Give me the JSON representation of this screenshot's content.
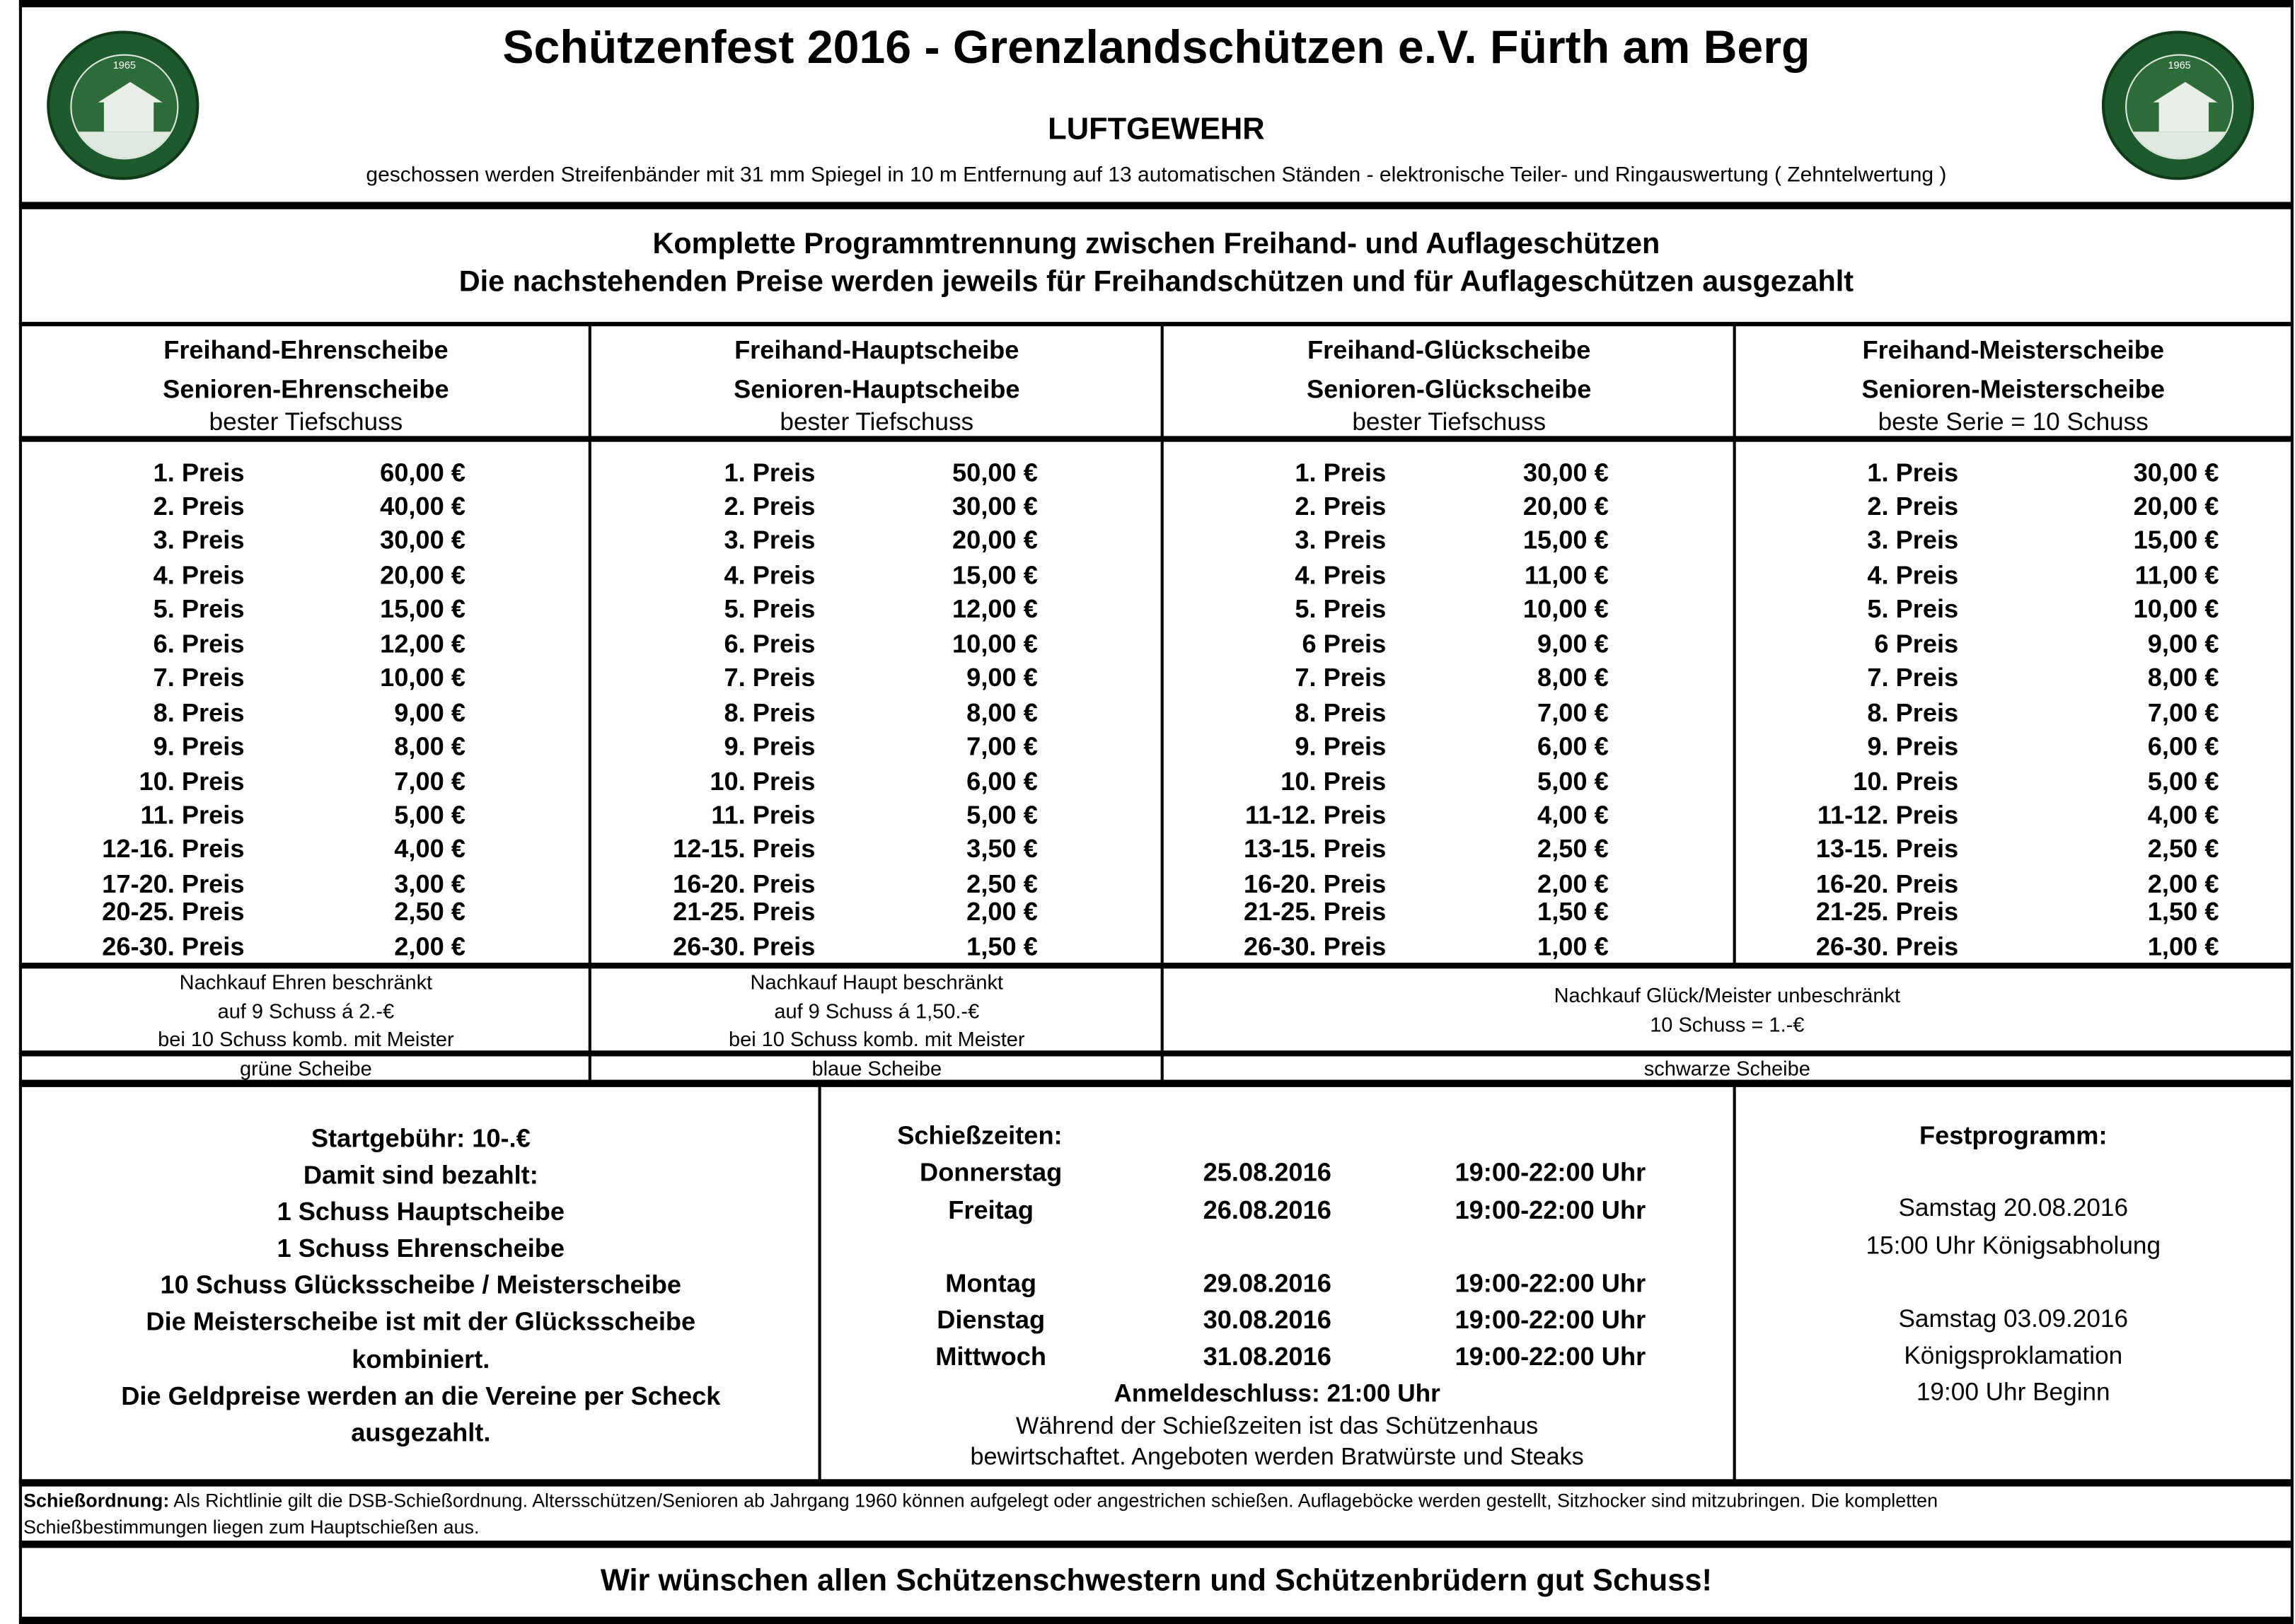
{
  "header": {
    "title": "Schützenfest 2016 - Grenzlandschützen e.V. Fürth am Berg",
    "subtitle": "LUFTGEWEHR",
    "description": "geschossen werden Streifenbänder mit 31 mm Spiegel in 10 m Entfernung auf 13 automatischen Ständen  - elektronische Teiler- und Ringauswertung ( Zehntelwertung )",
    "logo_text": "GRENZLANDSCHÜTZEN 1965 FÜRTH AM BERG",
    "logo_color": "#1f5a2c"
  },
  "notice": {
    "line1": "Komplette Programmtrennung zwischen Freihand- und Auflageschützen",
    "line2": "Die nachstehenden Preise werden jeweils für Freihandschützen und für Auflageschützen ausgezahlt"
  },
  "columns": [
    {
      "title1": "Freihand-Ehrenscheibe",
      "title2": "Senioren-Ehrenscheibe",
      "title3": "bester Tiefschuss",
      "prizes": [
        {
          "place": "1. Preis",
          "amount": "60,00 €"
        },
        {
          "place": "2. Preis",
          "amount": "40,00 €"
        },
        {
          "place": "3. Preis",
          "amount": "30,00 €"
        },
        {
          "place": "4. Preis",
          "amount": "20,00 €"
        },
        {
          "place": "5. Preis",
          "amount": "15,00 €"
        },
        {
          "place": "6. Preis",
          "amount": "12,00 €"
        },
        {
          "place": "7. Preis",
          "amount": "10,00 €"
        },
        {
          "place": "8. Preis",
          "amount": "9,00 €"
        },
        {
          "place": "9. Preis",
          "amount": "8,00 €"
        },
        {
          "place": "10. Preis",
          "amount": "7,00 €"
        },
        {
          "place": "11. Preis",
          "amount": "5,00 €"
        },
        {
          "place": "12-16. Preis",
          "amount": "4,00 €"
        },
        {
          "place": "17-20. Preis",
          "amount": "3,00 €"
        },
        {
          "place": "20-25. Preis",
          "amount": "2,50 €"
        },
        {
          "place": "26-30. Preis",
          "amount": "2,00 €"
        }
      ],
      "nachkauf": [
        "Nachkauf Ehren beschränkt",
        "auf 9 Schuss á 2.-€",
        "bei 10 Schuss komb. mit Meister"
      ],
      "scheibe": "grüne Scheibe"
    },
    {
      "title1": "Freihand-Hauptscheibe",
      "title2": "Senioren-Hauptscheibe",
      "title3": "bester Tiefschuss",
      "prizes": [
        {
          "place": "1. Preis",
          "amount": "50,00 €"
        },
        {
          "place": "2. Preis",
          "amount": "30,00 €"
        },
        {
          "place": "3. Preis",
          "amount": "20,00 €"
        },
        {
          "place": "4. Preis",
          "amount": "15,00 €"
        },
        {
          "place": "5. Preis",
          "amount": "12,00 €"
        },
        {
          "place": "6. Preis",
          "amount": "10,00 €"
        },
        {
          "place": "7. Preis",
          "amount": "9,00 €"
        },
        {
          "place": "8. Preis",
          "amount": "8,00 €"
        },
        {
          "place": "9. Preis",
          "amount": "7,00 €"
        },
        {
          "place": "10. Preis",
          "amount": "6,00 €"
        },
        {
          "place": "11. Preis",
          "amount": "5,00 €"
        },
        {
          "place": "12-15. Preis",
          "amount": "3,50 €"
        },
        {
          "place": "16-20. Preis",
          "amount": "2,50 €"
        },
        {
          "place": "21-25. Preis",
          "amount": "2,00 €"
        },
        {
          "place": "26-30. Preis",
          "amount": "1,50 €"
        }
      ],
      "nachkauf": [
        "Nachkauf Haupt beschränkt",
        "auf 9 Schuss á 1,50.-€",
        "bei 10 Schuss komb. mit Meister"
      ],
      "scheibe": "blaue Scheibe"
    },
    {
      "title1": "Freihand-Glückscheibe",
      "title2": "Senioren-Glückscheibe",
      "title3": "bester Tiefschuss",
      "prizes": [
        {
          "place": "1. Preis",
          "amount": "30,00 €"
        },
        {
          "place": "2. Preis",
          "amount": "20,00 €"
        },
        {
          "place": "3. Preis",
          "amount": "15,00 €"
        },
        {
          "place": "4. Preis",
          "amount": "11,00 €"
        },
        {
          "place": "5. Preis",
          "amount": "10,00 €"
        },
        {
          "place": "6 Preis",
          "amount": "9,00 €"
        },
        {
          "place": "7. Preis",
          "amount": "8,00 €"
        },
        {
          "place": "8. Preis",
          "amount": "7,00 €"
        },
        {
          "place": "9. Preis",
          "amount": "6,00 €"
        },
        {
          "place": "10. Preis",
          "amount": "5,00 €"
        },
        {
          "place": "11-12. Preis",
          "amount": "4,00 €"
        },
        {
          "place": "13-15. Preis",
          "amount": "2,50 €"
        },
        {
          "place": "16-20. Preis",
          "amount": "2,00 €"
        },
        {
          "place": "21-25. Preis",
          "amount": "1,50 €"
        },
        {
          "place": "26-30. Preis",
          "amount": "1,00 €"
        }
      ]
    },
    {
      "title1": "Freihand-Meisterscheibe",
      "title2": "Senioren-Meisterscheibe",
      "title3": "beste Serie = 10 Schuss",
      "prizes": [
        {
          "place": "1. Preis",
          "amount": "30,00 €"
        },
        {
          "place": "2. Preis",
          "amount": "20,00 €"
        },
        {
          "place": "3. Preis",
          "amount": "15,00 €"
        },
        {
          "place": "4. Preis",
          "amount": "11,00 €"
        },
        {
          "place": "5. Preis",
          "amount": "10,00 €"
        },
        {
          "place": "6 Preis",
          "amount": "9,00 €"
        },
        {
          "place": "7. Preis",
          "amount": "8,00 €"
        },
        {
          "place": "8. Preis",
          "amount": "7,00 €"
        },
        {
          "place": "9. Preis",
          "amount": "6,00 €"
        },
        {
          "place": "10. Preis",
          "amount": "5,00 €"
        },
        {
          "place": "11-12. Preis",
          "amount": "4,00 €"
        },
        {
          "place": "13-15. Preis",
          "amount": "2,50 €"
        },
        {
          "place": "16-20. Preis",
          "amount": "2,00 €"
        },
        {
          "place": "21-25. Preis",
          "amount": "1,50 €"
        },
        {
          "place": "26-30. Preis",
          "amount": "1,00 €"
        }
      ]
    }
  ],
  "nachkauf_shared": [
    "Nachkauf Glück/Meister unbeschränkt",
    "10 Schuss = 1.-€"
  ],
  "scheibe_shared": "schwarze Scheibe",
  "fees": {
    "lines": [
      "Startgebühr: 10-.€",
      "Damit sind bezahlt:",
      "1 Schuss Hauptscheibe",
      "1 Schuss Ehrenscheibe",
      "10 Schuss Glücksscheibe / Meisterscheibe",
      "Die Meisterscheibe ist mit der Glücksscheibe",
      "kombiniert.",
      "Die Geldpreise werden an die Vereine per Scheck",
      "ausgezahlt."
    ]
  },
  "schedule": {
    "title": "Schießzeiten:",
    "rows": [
      {
        "day": "Donnerstag",
        "date": "25.08.2016",
        "time": "19:00-22:00 Uhr"
      },
      {
        "day": "Freitag",
        "date": "26.08.2016",
        "time": "19:00-22:00 Uhr"
      },
      {
        "day": "Montag",
        "date": "29.08.2016",
        "time": "19:00-22:00 Uhr"
      },
      {
        "day": "Dienstag",
        "date": "30.08.2016",
        "time": "19:00-22:00 Uhr"
      },
      {
        "day": "Mittwoch",
        "date": "31.08.2016",
        "time": "19:00-22:00 Uhr"
      }
    ],
    "deadline": "Anmeldeschluss: 21:00 Uhr",
    "note1": "Während der Schießzeiten ist das Schützenhaus",
    "note2": "bewirtschaftet. Angeboten werden Bratwürste und Steaks"
  },
  "festprogramm": {
    "title": "Festprogramm:",
    "lines": [
      "Samstag 20.08.2016",
      "15:00 Uhr Königsabholung",
      "Samstag 03.09.2016",
      "Königsproklamation",
      "19:00 Uhr Beginn"
    ]
  },
  "rules": {
    "label": "Schießordnung:",
    "text1": " Als Richtlinie gilt die DSB-Schießordnung. Altersschützen/Senioren ab Jahrgang 1960 können aufgelegt oder angestrichen schießen. Auflageböcke werden gestellt, Sitzhocker sind mitzubringen. Die kompletten",
    "text2": "Schießbestimmungen liegen zum Hauptschießen aus."
  },
  "footer": "Wir wünschen allen Schützenschwestern und Schützenbrüdern gut Schuss!"
}
